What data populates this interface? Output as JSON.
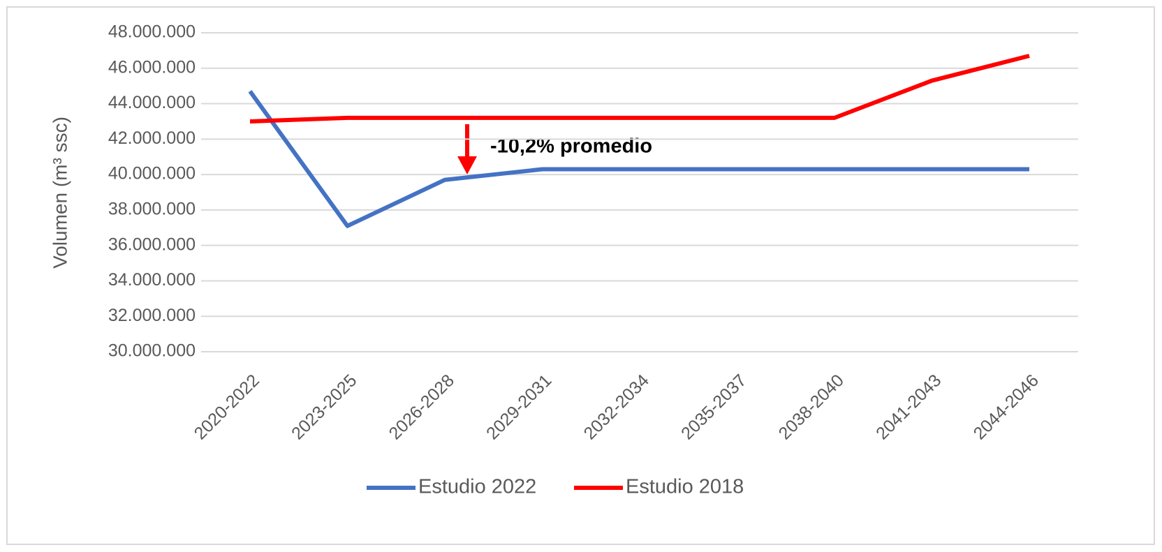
{
  "chart_data": {
    "type": "line",
    "y_label": "Volumen (m³ ssc)",
    "annotation": "-10,2% promedio",
    "categories": [
      "2020-2022",
      "2023-2025",
      "2026-2028",
      "2029-2031",
      "2032-2034",
      "2035-2037",
      "2038-2040",
      "2041-2043",
      "2044-2046"
    ],
    "series": [
      {
        "name": "Estudio 2022",
        "color": "#4472c4",
        "values": [
          44700000,
          37100000,
          39700000,
          40300000,
          40300000,
          40300000,
          40300000,
          40300000,
          40300000
        ]
      },
      {
        "name": "Estudio 2018",
        "color": "#ff0000",
        "values": [
          43000000,
          43200000,
          43200000,
          43200000,
          43200000,
          43200000,
          43200000,
          45300000,
          46700000
        ]
      }
    ],
    "ylim": [
      30000000,
      48000000
    ],
    "yticks": [
      {
        "value": 30000000,
        "label": "30.000.000"
      },
      {
        "value": 32000000,
        "label": "32.000.000"
      },
      {
        "value": 34000000,
        "label": "34.000.000"
      },
      {
        "value": 36000000,
        "label": "36.000.000"
      },
      {
        "value": 38000000,
        "label": "38.000.000"
      },
      {
        "value": 40000000,
        "label": "40.000.000"
      },
      {
        "value": 42000000,
        "label": "42.000.000"
      },
      {
        "value": 44000000,
        "label": "44.000.000"
      },
      {
        "value": 46000000,
        "label": "46.000.000"
      },
      {
        "value": 48000000,
        "label": "48.000.000"
      }
    ],
    "grid": true,
    "legend": "bottom"
  }
}
